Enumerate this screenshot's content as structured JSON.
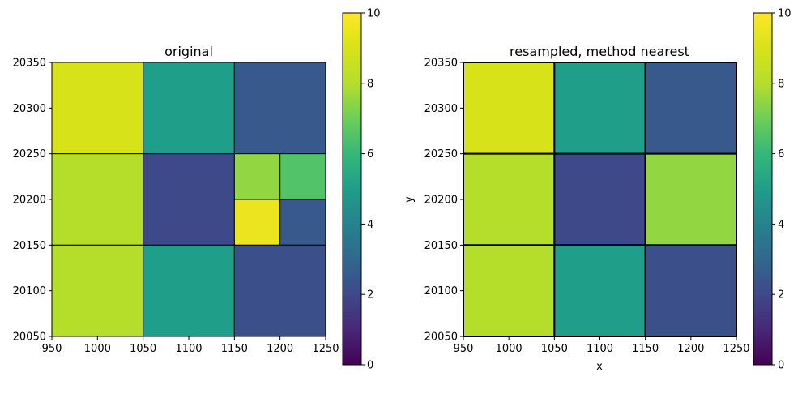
{
  "chart_data": [
    {
      "type": "heatmap",
      "title": "original",
      "xlabel": "",
      "ylabel": "",
      "xlim": [
        950,
        1250
      ],
      "ylim": [
        20050,
        20350
      ],
      "xticks": [
        "950",
        "1000",
        "1050",
        "1100",
        "1150",
        "1200",
        "1250"
      ],
      "yticks": [
        "20050",
        "20100",
        "20150",
        "20200",
        "20250",
        "20300",
        "20350"
      ],
      "cells": [
        {
          "x0": 950,
          "x1": 1050,
          "y0": 20250,
          "y1": 20350,
          "value": 9
        },
        {
          "x0": 1050,
          "x1": 1150,
          "y0": 20250,
          "y1": 20350,
          "value": 5
        },
        {
          "x0": 1150,
          "x1": 1250,
          "y0": 20250,
          "y1": 20350,
          "value": 2.5
        },
        {
          "x0": 950,
          "x1": 1050,
          "y0": 20150,
          "y1": 20250,
          "value": 8
        },
        {
          "x0": 1050,
          "x1": 1150,
          "y0": 20150,
          "y1": 20250,
          "value": 2
        },
        {
          "x0": 1150,
          "x1": 1200,
          "y0": 20200,
          "y1": 20250,
          "value": 7.5
        },
        {
          "x0": 1200,
          "x1": 1250,
          "y0": 20200,
          "y1": 20250,
          "value": 6.5
        },
        {
          "x0": 1150,
          "x1": 1200,
          "y0": 20150,
          "y1": 20200,
          "value": 9.5
        },
        {
          "x0": 1200,
          "x1": 1250,
          "y0": 20150,
          "y1": 20200,
          "value": 2.5
        },
        {
          "x0": 950,
          "x1": 1050,
          "y0": 20050,
          "y1": 20150,
          "value": 8
        },
        {
          "x0": 1050,
          "x1": 1150,
          "y0": 20050,
          "y1": 20150,
          "value": 5
        },
        {
          "x0": 1150,
          "x1": 1250,
          "y0": 20050,
          "y1": 20150,
          "value": 2.2
        }
      ],
      "colorbar": {
        "min": 0,
        "max": 10,
        "ticks": [
          "0",
          "2",
          "4",
          "6",
          "8",
          "10"
        ],
        "colormap": "viridis"
      }
    },
    {
      "type": "heatmap",
      "title": "resampled, method nearest",
      "xlabel": "x",
      "ylabel": "y",
      "xlim": [
        950,
        1250
      ],
      "ylim": [
        20050,
        20350
      ],
      "xticks": [
        "950",
        "1000",
        "1050",
        "1100",
        "1150",
        "1200",
        "1250"
      ],
      "yticks": [
        "20050",
        "20100",
        "20150",
        "20200",
        "20250",
        "20300",
        "20350"
      ],
      "cells": [
        {
          "x0": 950,
          "x1": 1050,
          "y0": 20250,
          "y1": 20350,
          "value": 9
        },
        {
          "x0": 1050,
          "x1": 1150,
          "y0": 20250,
          "y1": 20350,
          "value": 5
        },
        {
          "x0": 1150,
          "x1": 1250,
          "y0": 20250,
          "y1": 20350,
          "value": 2.5
        },
        {
          "x0": 950,
          "x1": 1050,
          "y0": 20150,
          "y1": 20250,
          "value": 8
        },
        {
          "x0": 1050,
          "x1": 1150,
          "y0": 20150,
          "y1": 20250,
          "value": 2
        },
        {
          "x0": 1150,
          "x1": 1250,
          "y0": 20150,
          "y1": 20250,
          "value": 7.5
        },
        {
          "x0": 950,
          "x1": 1050,
          "y0": 20050,
          "y1": 20150,
          "value": 8
        },
        {
          "x0": 1050,
          "x1": 1150,
          "y0": 20050,
          "y1": 20150,
          "value": 5
        },
        {
          "x0": 1150,
          "x1": 1250,
          "y0": 20050,
          "y1": 20150,
          "value": 2.2
        }
      ],
      "colorbar": {
        "min": 0,
        "max": 10,
        "ticks": [
          "0",
          "2",
          "4",
          "6",
          "8",
          "10"
        ],
        "colormap": "viridis"
      }
    }
  ]
}
